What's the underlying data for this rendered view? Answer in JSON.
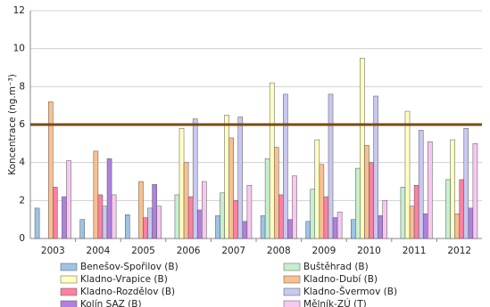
{
  "chart_data": {
    "type": "bar",
    "y_label": "Koncentrace (ng.m⁻³)",
    "categories": [
      "2003",
      "2004",
      "2005",
      "2006",
      "2007",
      "2008",
      "2009",
      "2010",
      "2011",
      "2012"
    ],
    "series": [
      {
        "name": "Benešov-Spořilov (B)",
        "color": "#9dc3e6",
        "values": [
          1.6,
          1.0,
          1.25,
          null,
          1.2,
          1.2,
          0.9,
          1.0,
          null,
          null
        ]
      },
      {
        "name": "Buštěhrad (B)",
        "color": "#c6efce",
        "values": [
          null,
          null,
          null,
          2.3,
          2.4,
          4.2,
          2.6,
          3.7,
          2.7,
          3.1
        ]
      },
      {
        "name": "Kladno-Vrapice (B)",
        "color": "#ffffc0",
        "values": [
          null,
          null,
          null,
          5.8,
          6.5,
          8.2,
          5.2,
          9.5,
          6.7,
          5.2
        ]
      },
      {
        "name": "Kladno-Dubí (B)",
        "color": "#f8c090",
        "values": [
          7.2,
          4.6,
          3.0,
          4.0,
          5.3,
          4.8,
          3.9,
          4.9,
          1.7,
          1.3
        ]
      },
      {
        "name": "Kladno-Rozdělov (B)",
        "color": "#ff80a0",
        "values": [
          2.7,
          2.3,
          1.1,
          2.2,
          2.0,
          2.3,
          2.2,
          4.0,
          2.8,
          3.1
        ]
      },
      {
        "name": "Kladno-Švermov (B)",
        "color": "#c8c8f0",
        "values": [
          null,
          1.7,
          1.6,
          6.3,
          6.4,
          7.6,
          7.6,
          7.5,
          5.7,
          5.8
        ]
      },
      {
        "name": "Kolín SAZ (B)",
        "color": "#b080e0",
        "values": [
          2.2,
          4.2,
          2.85,
          1.5,
          0.9,
          1.0,
          1.1,
          1.2,
          1.3,
          1.6
        ]
      },
      {
        "name": "Mělník-ZÚ (T)",
        "color": "#f8c8f0",
        "values": [
          4.1,
          2.3,
          1.7,
          3.0,
          2.8,
          3.3,
          1.4,
          2.0,
          5.1,
          5.0
        ]
      }
    ],
    "limit_line": 6,
    "limit_color": "#7b4a12",
    "ylim": [
      0,
      12
    ],
    "yticks": [
      0,
      2,
      4,
      6,
      8,
      10,
      12
    ],
    "grid": true
  }
}
